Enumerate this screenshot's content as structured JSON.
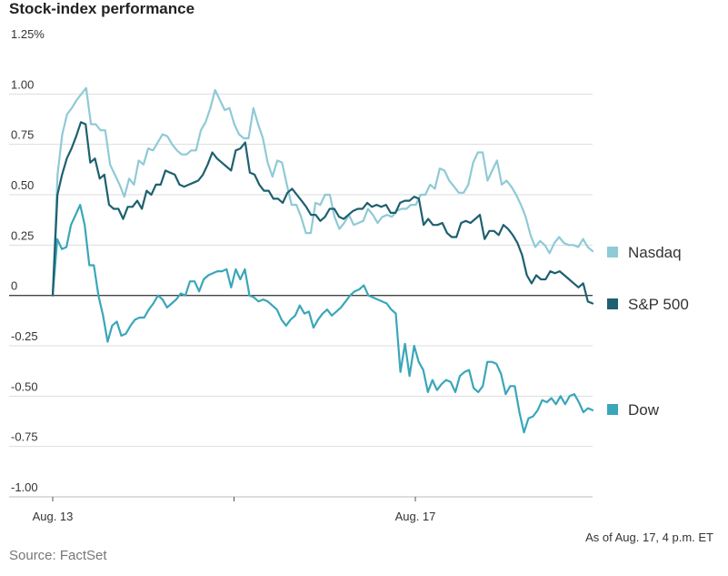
{
  "title": "Stock-index performance",
  "source": "Source: FactSet",
  "as_of": "As of Aug. 17, 4 p.m. ET",
  "chart_data": {
    "type": "line",
    "title": "Stock-index performance",
    "xlabel": "",
    "ylabel": "",
    "x_tick_labels": [
      "Aug. 13",
      "Aug. 17"
    ],
    "y_tick_labels": [
      "1.25%",
      "1.00",
      "0.75",
      "0.50",
      "0.25",
      "0",
      "-0.25",
      "-0.50",
      "-0.75",
      "-1.00"
    ],
    "y_tick_values": [
      1.25,
      1.0,
      0.75,
      0.5,
      0.25,
      0,
      -0.25,
      -0.5,
      -0.75,
      -1.0
    ],
    "ylim": [
      -1.0,
      1.25
    ],
    "x_range_trading_days": [
      0,
      3
    ],
    "grid": true,
    "legend_placement": "right, next to line ends",
    "series": [
      {
        "name": "Nasdaq",
        "color": "#8fcad6",
        "values": [
          0.0,
          0.6,
          0.8,
          0.9,
          0.93,
          0.97,
          1.0,
          1.03,
          0.85,
          0.85,
          0.82,
          0.82,
          0.65,
          0.6,
          0.55,
          0.49,
          0.58,
          0.55,
          0.67,
          0.65,
          0.73,
          0.72,
          0.76,
          0.8,
          0.79,
          0.75,
          0.72,
          0.7,
          0.7,
          0.72,
          0.72,
          0.82,
          0.86,
          0.93,
          1.02,
          0.97,
          0.92,
          0.93,
          0.85,
          0.8,
          0.78,
          0.78,
          0.93,
          0.85,
          0.78,
          0.66,
          0.59,
          0.67,
          0.66,
          0.55,
          0.45,
          0.45,
          0.39,
          0.31,
          0.31,
          0.46,
          0.45,
          0.5,
          0.5,
          0.39,
          0.33,
          0.36,
          0.4,
          0.35,
          0.36,
          0.37,
          0.43,
          0.4,
          0.36,
          0.39,
          0.4,
          0.39,
          0.42,
          0.43,
          0.43,
          0.45,
          0.45,
          0.5,
          0.5,
          0.55,
          0.53,
          0.63,
          0.62,
          0.57,
          0.54,
          0.51,
          0.51,
          0.55,
          0.66,
          0.71,
          0.71,
          0.57,
          0.62,
          0.67,
          0.55,
          0.57,
          0.54,
          0.5,
          0.45,
          0.39,
          0.3,
          0.24,
          0.27,
          0.25,
          0.21,
          0.26,
          0.29,
          0.26,
          0.25,
          0.25,
          0.24,
          0.28,
          0.24,
          0.22
        ]
      },
      {
        "name": "S&P 500",
        "color": "#1e6070",
        "values": [
          0.0,
          0.5,
          0.6,
          0.68,
          0.73,
          0.79,
          0.86,
          0.85,
          0.66,
          0.68,
          0.58,
          0.6,
          0.45,
          0.43,
          0.43,
          0.38,
          0.44,
          0.44,
          0.47,
          0.43,
          0.52,
          0.5,
          0.55,
          0.55,
          0.62,
          0.61,
          0.6,
          0.55,
          0.54,
          0.55,
          0.56,
          0.57,
          0.6,
          0.65,
          0.71,
          0.68,
          0.66,
          0.64,
          0.62,
          0.72,
          0.73,
          0.76,
          0.61,
          0.6,
          0.55,
          0.52,
          0.52,
          0.48,
          0.48,
          0.46,
          0.51,
          0.53,
          0.5,
          0.47,
          0.44,
          0.4,
          0.4,
          0.37,
          0.39,
          0.43,
          0.43,
          0.39,
          0.38,
          0.4,
          0.42,
          0.43,
          0.43,
          0.46,
          0.44,
          0.45,
          0.44,
          0.45,
          0.41,
          0.41,
          0.46,
          0.47,
          0.47,
          0.49,
          0.48,
          0.35,
          0.38,
          0.35,
          0.35,
          0.36,
          0.31,
          0.29,
          0.29,
          0.36,
          0.37,
          0.36,
          0.38,
          0.4,
          0.28,
          0.32,
          0.32,
          0.3,
          0.35,
          0.33,
          0.3,
          0.26,
          0.2,
          0.1,
          0.06,
          0.1,
          0.08,
          0.08,
          0.12,
          0.11,
          0.12,
          0.1,
          0.08,
          0.06,
          0.04,
          0.06,
          -0.03,
          -0.04
        ]
      },
      {
        "name": "Dow",
        "color": "#3aa6b9",
        "values": [
          0.0,
          0.28,
          0.23,
          0.24,
          0.35,
          0.4,
          0.45,
          0.35,
          0.15,
          0.15,
          0.0,
          -0.1,
          -0.23,
          -0.15,
          -0.13,
          -0.2,
          -0.19,
          -0.15,
          -0.12,
          -0.11,
          -0.11,
          -0.07,
          -0.04,
          0.0,
          -0.02,
          -0.06,
          -0.04,
          -0.02,
          0.01,
          0.0,
          0.07,
          0.07,
          0.02,
          0.08,
          0.1,
          0.11,
          0.12,
          0.12,
          0.13,
          0.04,
          0.13,
          0.08,
          0.13,
          0.0,
          -0.01,
          -0.03,
          -0.02,
          -0.03,
          -0.05,
          -0.07,
          -0.12,
          -0.15,
          -0.12,
          -0.1,
          -0.05,
          -0.09,
          -0.08,
          -0.16,
          -0.12,
          -0.09,
          -0.07,
          -0.1,
          -0.08,
          -0.06,
          -0.03,
          0.0,
          0.02,
          0.03,
          0.05,
          0.0,
          -0.01,
          -0.02,
          -0.03,
          -0.04,
          -0.07,
          -0.09,
          -0.38,
          -0.24,
          -0.4,
          -0.25,
          -0.33,
          -0.37,
          -0.48,
          -0.42,
          -0.47,
          -0.44,
          -0.42,
          -0.43,
          -0.48,
          -0.4,
          -0.38,
          -0.37,
          -0.46,
          -0.48,
          -0.45,
          -0.33,
          -0.33,
          -0.34,
          -0.39,
          -0.49,
          -0.45,
          -0.45,
          -0.58,
          -0.68,
          -0.61,
          -0.6,
          -0.57,
          -0.52,
          -0.53,
          -0.51,
          -0.54,
          -0.5,
          -0.54,
          -0.5,
          -0.49,
          -0.53,
          -0.58,
          -0.56,
          -0.57
        ]
      }
    ]
  }
}
